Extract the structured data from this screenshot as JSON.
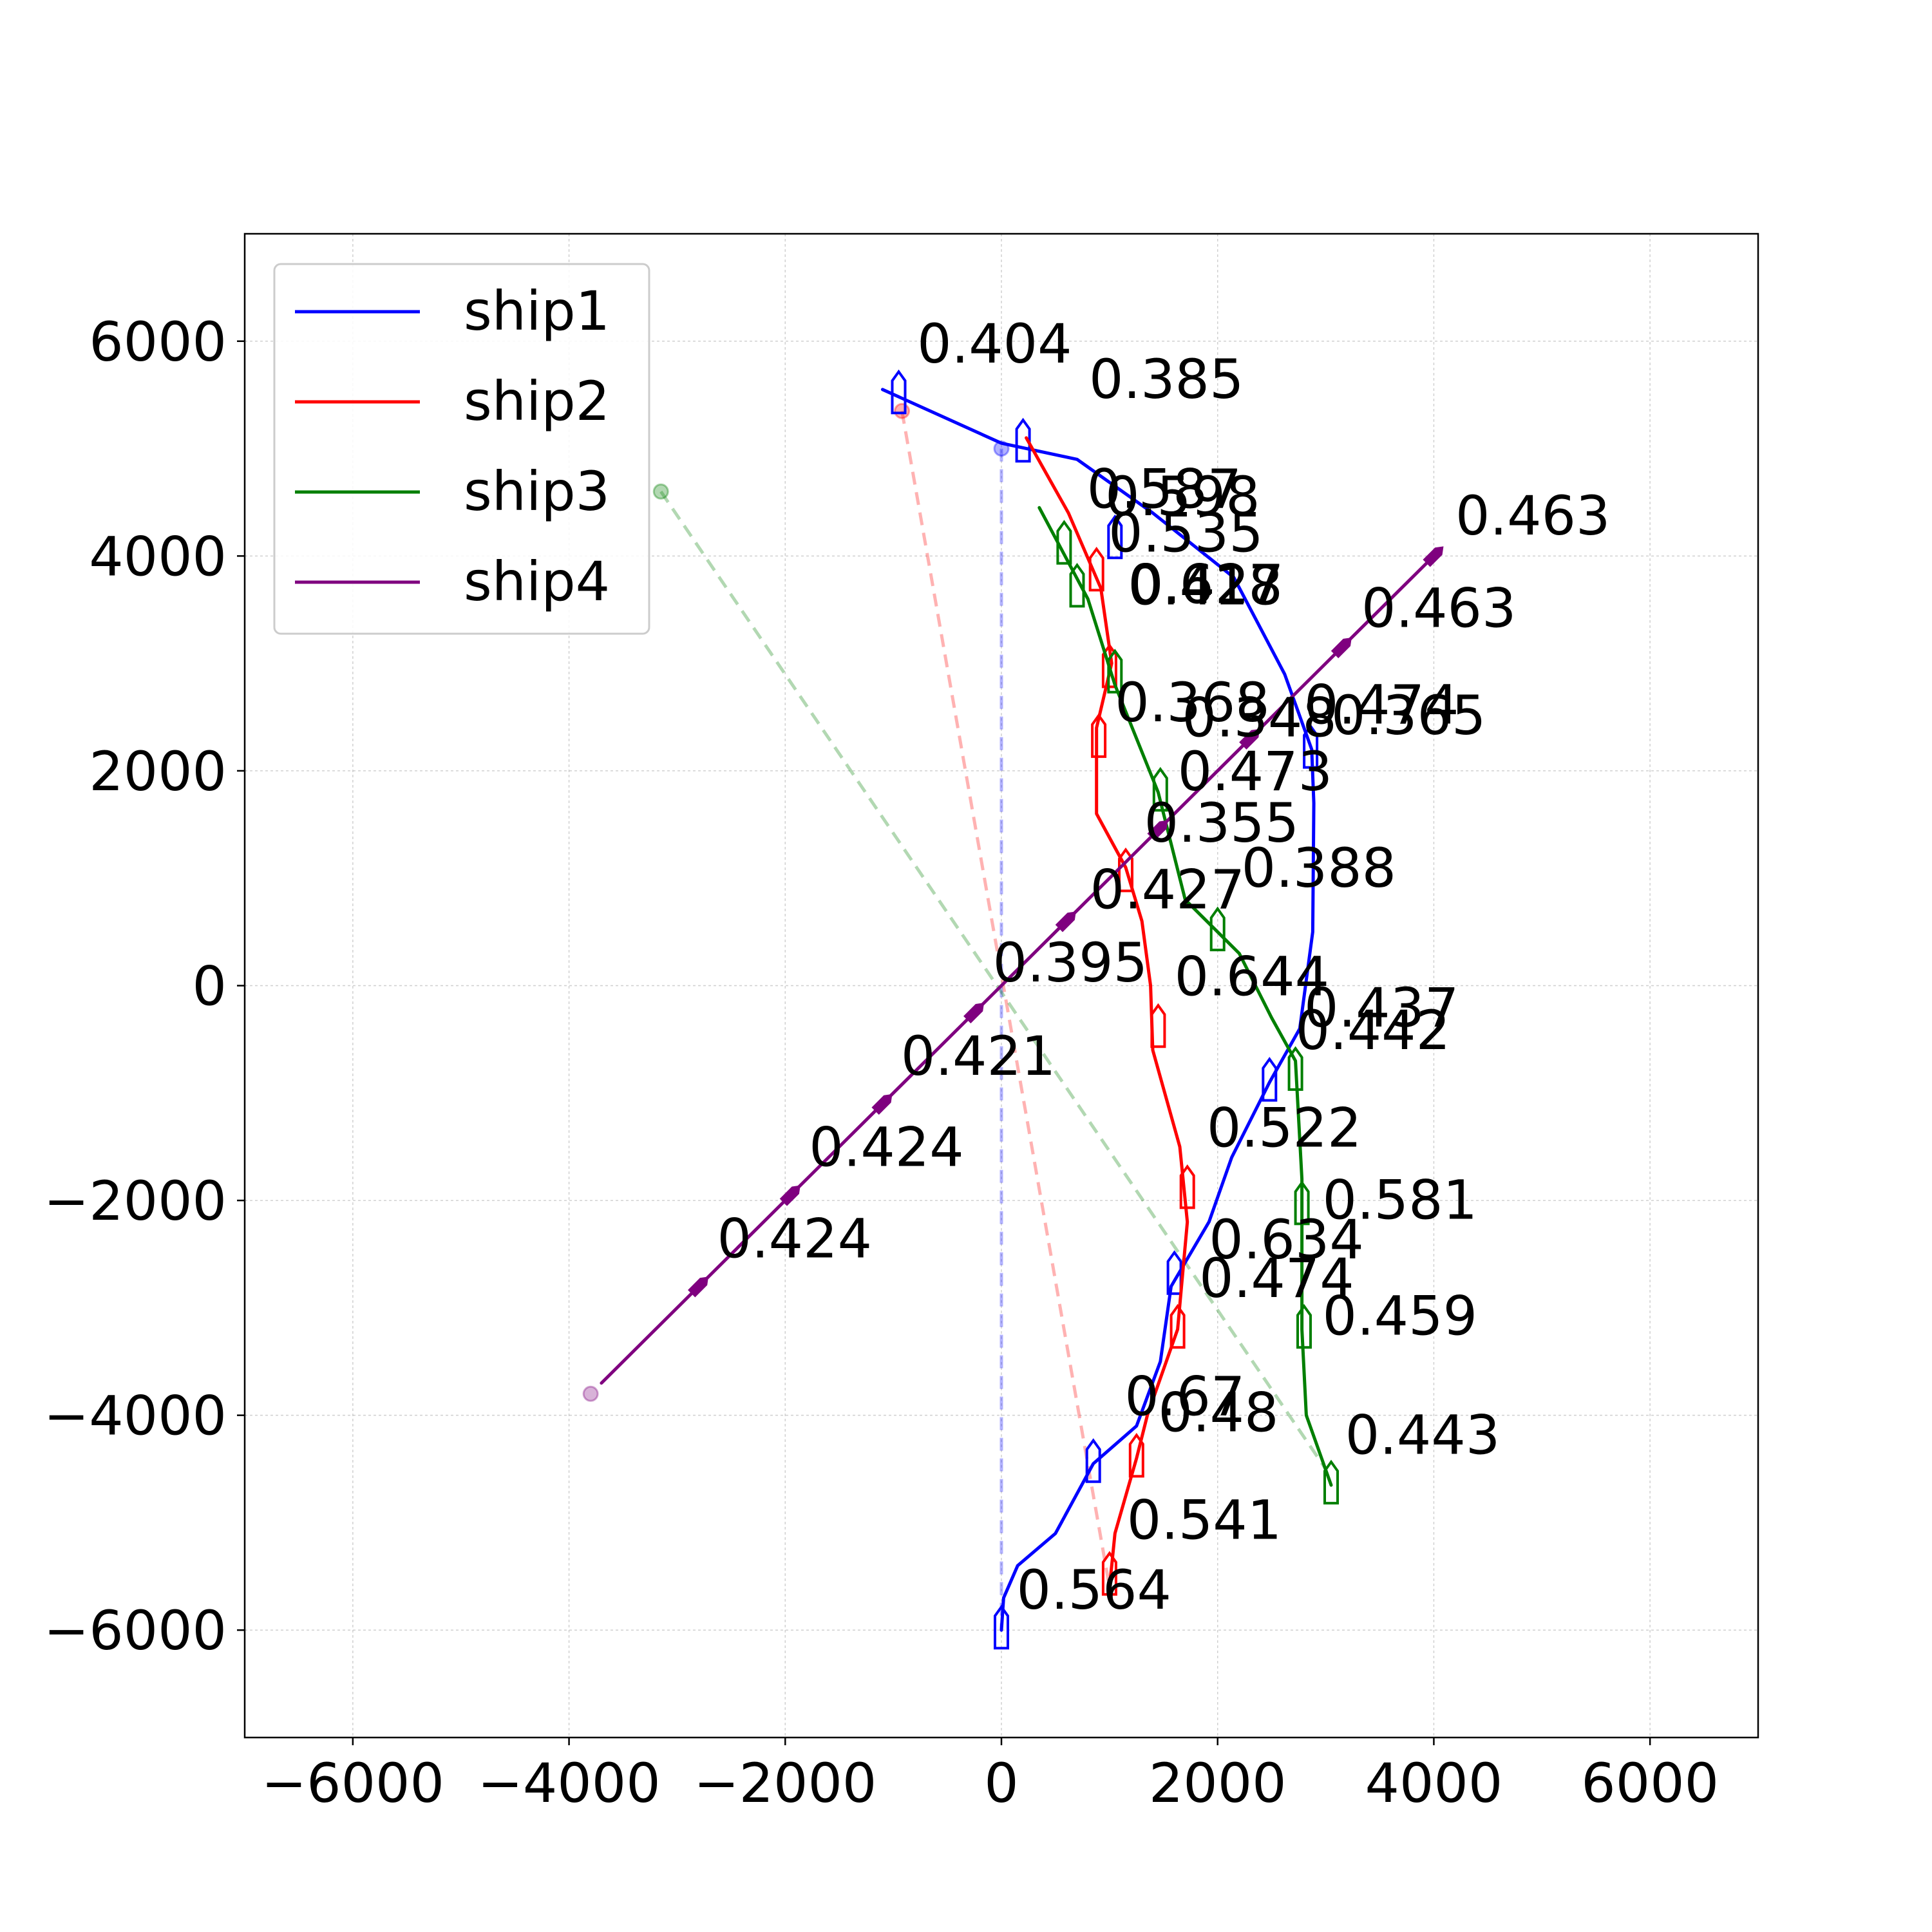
{
  "chart_data": {
    "type": "line",
    "title": "",
    "xlabel": "",
    "ylabel": "",
    "xlim": [
      -7000,
      7000
    ],
    "ylim": [
      -7000,
      7000
    ],
    "xticks": [
      "−6000",
      "−4000",
      "−2000",
      "0",
      "2000",
      "4000",
      "6000"
    ],
    "yticks": [
      "−6000",
      "−4000",
      "−2000",
      "0",
      "2000",
      "4000",
      "6000"
    ],
    "grid": true,
    "legend_position": "upper-left",
    "series": [
      {
        "name": "ship1",
        "color": "#0000ff",
        "path": [
          [
            0,
            -6000
          ],
          [
            20,
            -5700
          ],
          [
            150,
            -5400
          ],
          [
            500,
            -5100
          ],
          [
            850,
            -4450
          ],
          [
            1250,
            -4100
          ],
          [
            1470,
            -3500
          ],
          [
            1570,
            -2800
          ],
          [
            1920,
            -2200
          ],
          [
            2130,
            -1600
          ],
          [
            2480,
            -900
          ],
          [
            2760,
            -400
          ],
          [
            2880,
            500
          ],
          [
            2890,
            1700
          ],
          [
            2870,
            2200
          ],
          [
            2620,
            2900
          ],
          [
            2150,
            3800
          ],
          [
            1400,
            4400
          ],
          [
            700,
            4900
          ],
          [
            0,
            5050
          ],
          [
            -1100,
            5550
          ]
        ],
        "markers": [
          [
            0,
            -6000
          ],
          [
            850,
            -4450
          ],
          [
            1600,
            -2700
          ],
          [
            2480,
            -900
          ],
          [
            2860,
            2200
          ],
          [
            1050,
            4150
          ],
          [
            200,
            5050
          ],
          [
            -950,
            5500
          ]
        ],
        "labels": [
          {
            "x": 140,
            "y": -5800,
            "text": "0.564"
          },
          {
            "x": 1140,
            "y": -4000,
            "text": "0.67"
          },
          {
            "x": 1920,
            "y": -2540,
            "text": "0.634"
          },
          {
            "x": 2800,
            "y": -380,
            "text": "0.437"
          },
          {
            "x": 2800,
            "y": 2440,
            "text": "0.474"
          },
          {
            "x": 1170,
            "y": 3550,
            "text": "0.418"
          },
          {
            "x": 810,
            "y": 5470,
            "text": "0.385"
          },
          {
            "x": -780,
            "y": 5800,
            "text": "0.404"
          }
        ],
        "start_point": [
          0,
          5000
        ],
        "guide_to": [
          0,
          -6000
        ]
      },
      {
        "name": "ship2",
        "color": "#ff0000",
        "path": [
          [
            1000,
            -5600
          ],
          [
            1050,
            -5100
          ],
          [
            1250,
            -4400
          ],
          [
            1350,
            -4000
          ],
          [
            1630,
            -3200
          ],
          [
            1720,
            -2200
          ],
          [
            1650,
            -1500
          ],
          [
            1400,
            -600
          ],
          [
            1380,
            0
          ],
          [
            1300,
            600
          ],
          [
            1150,
            1100
          ],
          [
            880,
            1600
          ],
          [
            880,
            2400
          ],
          [
            1020,
            3000
          ],
          [
            920,
            3700
          ],
          [
            620,
            4400
          ],
          [
            230,
            5100
          ]
        ],
        "markers": [
          [
            1000,
            -5500
          ],
          [
            1250,
            -4400
          ],
          [
            1630,
            -3200
          ],
          [
            1720,
            -1900
          ],
          [
            1450,
            -400
          ],
          [
            1150,
            1050
          ],
          [
            900,
            2300
          ],
          [
            1000,
            2950
          ],
          [
            880,
            3850
          ]
        ],
        "labels": [
          {
            "x": 1160,
            "y": -5150,
            "text": "0.541"
          },
          {
            "x": 1450,
            "y": -4150,
            "text": "0.48"
          },
          {
            "x": 1830,
            "y": -2900,
            "text": "0.474"
          },
          {
            "x": 1900,
            "y": -1500,
            "text": "0.522"
          },
          {
            "x": 1600,
            "y": -90,
            "text": "0.644"
          },
          {
            "x": 820,
            "y": 720,
            "text": "0.427"
          },
          {
            "x": 1050,
            "y": 2460,
            "text": "0.368"
          },
          {
            "x": 1170,
            "y": 3560,
            "text": "0.617"
          },
          {
            "x": 990,
            "y": 4040,
            "text": "0.535"
          }
        ],
        "start_point": [
          -920,
          5350
        ],
        "guide_to": [
          1000,
          -5600
        ]
      },
      {
        "name": "ship3",
        "color": "#007f00",
        "path": [
          [
            3050,
            -4650
          ],
          [
            2820,
            -4000
          ],
          [
            2780,
            -3200
          ],
          [
            2780,
            -1800
          ],
          [
            2720,
            -700
          ],
          [
            2500,
            -300
          ],
          [
            2200,
            300
          ],
          [
            1700,
            800
          ],
          [
            1450,
            1800
          ],
          [
            1050,
            2800
          ],
          [
            800,
            3600
          ],
          [
            350,
            4450
          ]
        ],
        "markers": [
          [
            3050,
            -4650
          ],
          [
            2800,
            -3200
          ],
          [
            2780,
            -2050
          ],
          [
            2720,
            -800
          ],
          [
            2000,
            500
          ],
          [
            1470,
            1800
          ],
          [
            1050,
            2900
          ],
          [
            700,
            3700
          ],
          [
            580,
            4100
          ]
        ],
        "labels": [
          {
            "x": 3180,
            "y": -4360,
            "text": "0.443"
          },
          {
            "x": 2970,
            "y": -3250,
            "text": "0.459"
          },
          {
            "x": 2970,
            "y": -2170,
            "text": "0.581"
          },
          {
            "x": 2720,
            "y": -590,
            "text": "0.442"
          },
          {
            "x": 2220,
            "y": 920,
            "text": "0.388"
          },
          {
            "x": 1630,
            "y": 1820,
            "text": "0.473"
          },
          {
            "x": 1670,
            "y": 2320,
            "text": "0.348"
          },
          {
            "x": 1180,
            "y": 3560,
            "text": "0.427"
          },
          {
            "x": 790,
            "y": 4450,
            "text": "0.587"
          },
          {
            "x": 960,
            "y": 4380,
            "text": "0.598"
          }
        ],
        "start_point": [
          -3150,
          4600
        ],
        "guide_to": [
          3000,
          -4500
        ]
      },
      {
        "name": "ship4",
        "color": "#7f007f",
        "path": [
          [
            -3700,
            -3700
          ],
          [
            4050,
            4050
          ]
        ],
        "markers": [
          [
            -2800,
            -2800
          ],
          [
            -1950,
            -1950
          ],
          [
            -1100,
            -1100
          ],
          [
            -250,
            -250
          ],
          [
            600,
            600
          ],
          [
            1450,
            1450
          ],
          [
            2300,
            2300
          ],
          [
            3150,
            3150
          ],
          [
            4000,
            4000
          ]
        ],
        "labels": [
          {
            "x": -2630,
            "y": -2530,
            "text": "0.424"
          },
          {
            "x": -1780,
            "y": -1680,
            "text": "0.424"
          },
          {
            "x": -930,
            "y": -830,
            "text": "0.421"
          },
          {
            "x": -80,
            "y": 40,
            "text": "0.395"
          },
          {
            "x": 1320,
            "y": 1340,
            "text": "0.355"
          },
          {
            "x": 3050,
            "y": 2340,
            "text": "0.365"
          },
          {
            "x": 3330,
            "y": 3340,
            "text": "0.463"
          },
          {
            "x": 4200,
            "y": 4200,
            "text": "0.463"
          }
        ],
        "start_point": [
          -3800,
          -3800
        ],
        "guide_to": null
      }
    ]
  }
}
